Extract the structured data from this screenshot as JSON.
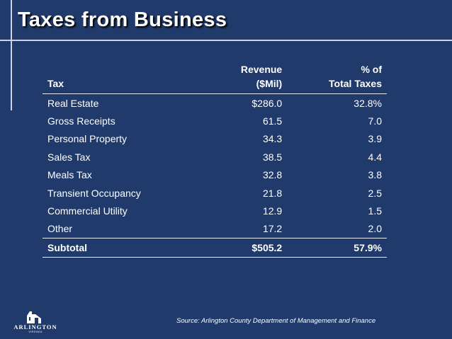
{
  "slide": {
    "title": "Taxes from Business",
    "source": "Source: Arlington County Department of Management and Finance"
  },
  "logo": {
    "word": "ARLINGTON",
    "sub": "VIRGINIA"
  },
  "table": {
    "headers": [
      {
        "line1": "",
        "line2": "Tax"
      },
      {
        "line1": "Revenue",
        "line2": "($Mil)"
      },
      {
        "line1": "% of",
        "line2": "Total Taxes"
      }
    ],
    "rows": [
      {
        "tax": "Real Estate",
        "revenue": "$286.0",
        "pct": "32.8%"
      },
      {
        "tax": "Gross Receipts",
        "revenue": "61.5",
        "pct": "7.0"
      },
      {
        "tax": "Personal Property",
        "revenue": "34.3",
        "pct": "3.9"
      },
      {
        "tax": "Sales Tax",
        "revenue": "38.5",
        "pct": "4.4"
      },
      {
        "tax": "Meals Tax",
        "revenue": "32.8",
        "pct": "3.8"
      },
      {
        "tax": "Transient Occupancy",
        "revenue": "21.8",
        "pct": "2.5"
      },
      {
        "tax": "Commercial Utility",
        "revenue": "12.9",
        "pct": "1.5"
      },
      {
        "tax": "Other",
        "revenue": "17.2",
        "pct": "2.0"
      }
    ],
    "subtotal": {
      "tax": "Subtotal",
      "revenue": "$505.2",
      "pct": "57.9%"
    }
  }
}
